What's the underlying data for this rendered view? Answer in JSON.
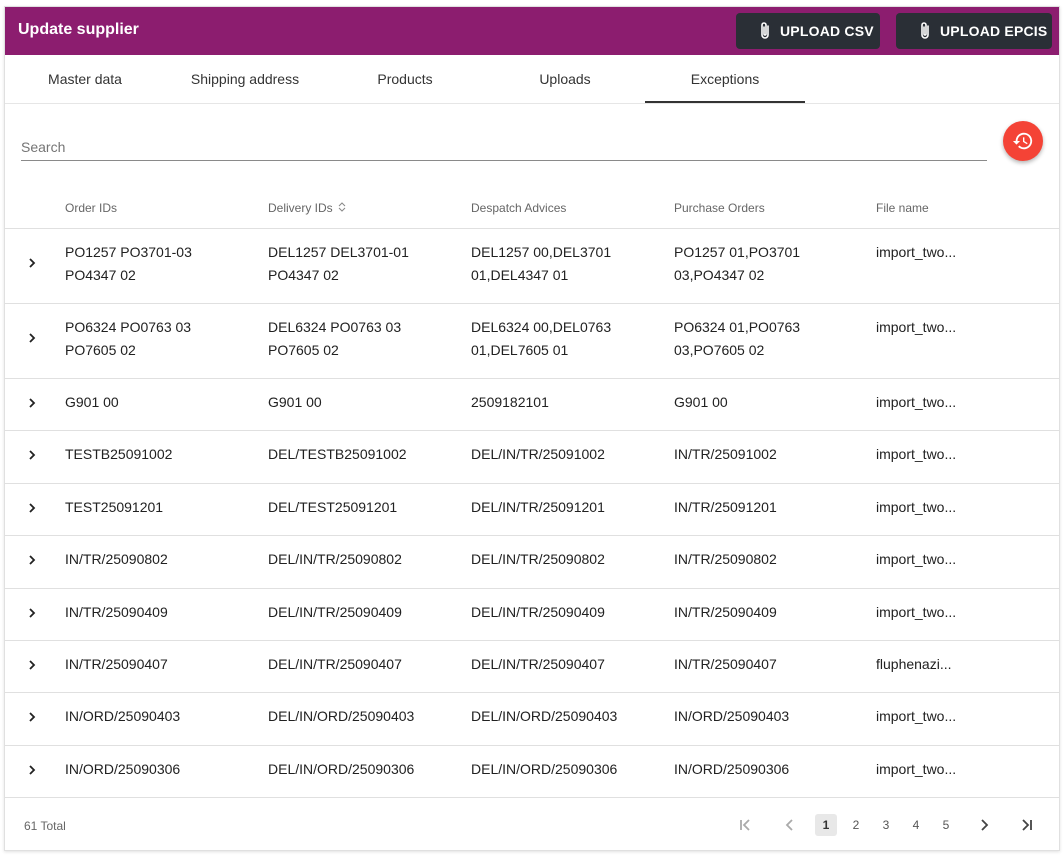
{
  "header": {
    "title": "Update supplier",
    "upload_csv_label": "UPLOAD CSV",
    "upload_epcis_label": "UPLOAD EPCIS",
    "background": "#8c1d6f"
  },
  "tabs": [
    {
      "label": "Master data"
    },
    {
      "label": "Shipping address"
    },
    {
      "label": "Products"
    },
    {
      "label": "Uploads"
    },
    {
      "label": "Exceptions",
      "active": true
    }
  ],
  "search": {
    "placeholder": "Search",
    "value": ""
  },
  "history_button": {
    "icon": "history-icon",
    "color": "#f44336"
  },
  "table": {
    "columns": [
      "Order IDs",
      "Delivery IDs",
      "Despatch Advices",
      "Purchase Orders",
      "File name"
    ],
    "sortable_column": "Delivery IDs",
    "rows": [
      {
        "order_line1": "PO1257 PO3701-03",
        "order_line2": "PO4347 02",
        "delivery_line1": "DEL1257 DEL3701-01",
        "delivery_line2": "PO4347 02",
        "despatch_line1": "DEL1257 00,DEL3701",
        "despatch_line2": "01,DEL4347 01",
        "purchase_line1": "PO1257 01,PO3701",
        "purchase_line2": "03,PO4347 02",
        "file": "import_two..."
      },
      {
        "order_line1": "PO6324 PO0763 03",
        "order_line2": "PO7605 02",
        "delivery_line1": "DEL6324 PO0763 03",
        "delivery_line2": "PO7605 02",
        "despatch_line1": "DEL6324 00,DEL0763",
        "despatch_line2": "01,DEL7605 01",
        "purchase_line1": "PO6324 01,PO0763",
        "purchase_line2": "03,PO7605 02",
        "file": "import_two..."
      },
      {
        "order_line1": "G901 00",
        "order_line2": "",
        "delivery_line1": "G901 00",
        "delivery_line2": "",
        "despatch_line1": "2509182101",
        "despatch_line2": "",
        "purchase_line1": "G901 00",
        "purchase_line2": "",
        "file": "import_two..."
      },
      {
        "order_line1": "TESTB25091002",
        "order_line2": "",
        "delivery_line1": "DEL/TESTB25091002",
        "delivery_line2": "",
        "despatch_line1": "DEL/IN/TR/25091002",
        "despatch_line2": "",
        "purchase_line1": "IN/TR/25091002",
        "purchase_line2": "",
        "file": "import_two..."
      },
      {
        "order_line1": "TEST25091201",
        "order_line2": "",
        "delivery_line1": "DEL/TEST25091201",
        "delivery_line2": "",
        "despatch_line1": "DEL/IN/TR/25091201",
        "despatch_line2": "",
        "purchase_line1": "IN/TR/25091201",
        "purchase_line2": "",
        "file": "import_two..."
      },
      {
        "order_line1": "IN/TR/25090802",
        "order_line2": "",
        "delivery_line1": "DEL/IN/TR/25090802",
        "delivery_line2": "",
        "despatch_line1": "DEL/IN/TR/25090802",
        "despatch_line2": "",
        "purchase_line1": "IN/TR/25090802",
        "purchase_line2": "",
        "file": "import_two..."
      },
      {
        "order_line1": "IN/TR/25090409",
        "order_line2": "",
        "delivery_line1": "DEL/IN/TR/25090409",
        "delivery_line2": "",
        "despatch_line1": "DEL/IN/TR/25090409",
        "despatch_line2": "",
        "purchase_line1": "IN/TR/25090409",
        "purchase_line2": "",
        "file": "import_two..."
      },
      {
        "order_line1": "IN/TR/25090407",
        "order_line2": "",
        "delivery_line1": "DEL/IN/TR/25090407",
        "delivery_line2": "",
        "despatch_line1": "DEL/IN/TR/25090407",
        "despatch_line2": "",
        "purchase_line1": "IN/TR/25090407",
        "purchase_line2": "",
        "file": "fluphenazi..."
      },
      {
        "order_line1": "IN/ORD/25090403",
        "order_line2": "",
        "delivery_line1": "DEL/IN/ORD/25090403",
        "delivery_line2": "",
        "despatch_line1": "DEL/IN/ORD/25090403",
        "despatch_line2": "",
        "purchase_line1": "IN/ORD/25090403",
        "purchase_line2": "",
        "file": "import_two..."
      },
      {
        "order_line1": "IN/ORD/25090306",
        "order_line2": "",
        "delivery_line1": "DEL/IN/ORD/25090306",
        "delivery_line2": "",
        "despatch_line1": "DEL/IN/ORD/25090306",
        "despatch_line2": "",
        "purchase_line1": "IN/ORD/25090306",
        "purchase_line2": "",
        "file": "import_two..."
      }
    ]
  },
  "pagination": {
    "total_label": "61 Total",
    "pages": [
      "1",
      "2",
      "3",
      "4",
      "5"
    ],
    "current_page": "1"
  }
}
